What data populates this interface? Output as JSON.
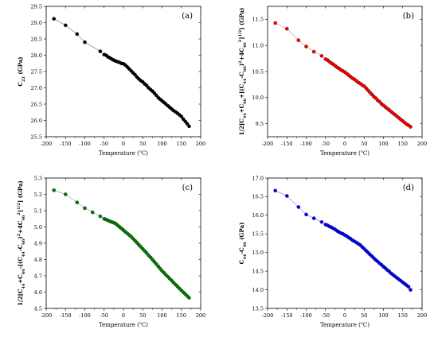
{
  "chart_data": [
    {
      "type": "scatter",
      "panel_label": "(a)",
      "color": "#000000",
      "xlabel_parts": [
        "Temperature (",
        "o",
        "C)"
      ],
      "ylabel_parts": [
        [
          "C",
          "n"
        ],
        [
          "22",
          "sub"
        ],
        [
          " (GPa)",
          "n"
        ]
      ],
      "xlim": [
        -200,
        200
      ],
      "ylim": [
        25.5,
        29.5
      ],
      "xticks": [
        -200,
        -150,
        -100,
        -50,
        0,
        50,
        100,
        150,
        200
      ],
      "yticks": [
        25.5,
        26.0,
        26.5,
        27.0,
        27.5,
        28.0,
        28.5,
        29.0,
        29.5
      ],
      "yticks_text": [
        "25.5",
        "26.0",
        "26.5",
        "27.0",
        "27.5",
        "28.0",
        "28.5",
        "29.0",
        "29.5"
      ],
      "anchors": [
        [
          -180,
          29.12
        ],
        [
          -150,
          28.92
        ],
        [
          -120,
          28.65
        ],
        [
          -100,
          28.4
        ],
        [
          -60,
          28.12
        ],
        [
          -50,
          28.02
        ],
        [
          -30,
          27.88
        ],
        [
          -10,
          27.78
        ],
        [
          0,
          27.74
        ],
        [
          10,
          27.64
        ],
        [
          20,
          27.52
        ],
        [
          30,
          27.4
        ],
        [
          50,
          27.18
        ],
        [
          75,
          26.9
        ],
        [
          100,
          26.6
        ],
        [
          125,
          26.35
        ],
        [
          150,
          26.12
        ],
        [
          170,
          25.82
        ]
      ],
      "x": [
        -180,
        -150,
        -120,
        -100,
        -60,
        -50,
        -45,
        -40,
        -35,
        -30,
        -25,
        -20,
        -15,
        -10,
        -5,
        0,
        5,
        10,
        15,
        20,
        25,
        30,
        35,
        40,
        45,
        50,
        55,
        60,
        65,
        70,
        75,
        80,
        85,
        90,
        95,
        100,
        105,
        110,
        115,
        120,
        125,
        130,
        135,
        140,
        145,
        150,
        155,
        160,
        165,
        170
      ],
      "y": [
        29.12,
        28.92,
        28.65,
        28.4,
        28.12,
        28.02,
        28.0,
        27.95,
        27.92,
        27.88,
        27.85,
        27.82,
        27.8,
        27.78,
        27.75,
        27.74,
        27.7,
        27.64,
        27.58,
        27.52,
        27.46,
        27.4,
        27.33,
        27.27,
        27.22,
        27.18,
        27.12,
        27.07,
        27.0,
        26.95,
        26.9,
        26.84,
        26.77,
        26.7,
        26.65,
        26.6,
        26.55,
        26.5,
        26.45,
        26.4,
        26.35,
        26.3,
        26.26,
        26.22,
        26.17,
        26.12,
        26.04,
        25.97,
        25.9,
        25.82
      ]
    },
    {
      "type": "scatter",
      "panel_label": "(b)",
      "color": "#ff0000",
      "xlabel_parts": [
        "Temperature (",
        "o",
        "C)"
      ],
      "ylabel_parts": [
        [
          "1/2[C",
          "n"
        ],
        [
          "44",
          "sub"
        ],
        [
          "+C",
          "n"
        ],
        [
          "66",
          "sub"
        ],
        [
          "+[(C",
          "n"
        ],
        [
          "44",
          "sub"
        ],
        [
          "-C",
          "n"
        ],
        [
          "66",
          "sub"
        ],
        [
          ")",
          "n"
        ],
        [
          "2",
          "sup"
        ],
        [
          "+4C",
          "n"
        ],
        [
          "46",
          "sub"
        ],
        [
          "2",
          "sup"
        ],
        [
          "]",
          "n"
        ],
        [
          "1/2",
          "sup"
        ],
        [
          "] (GPa)",
          "n"
        ]
      ],
      "xlim": [
        -200,
        200
      ],
      "ylim": [
        9.25,
        11.75
      ],
      "xticks": [
        -200,
        -150,
        -100,
        -50,
        0,
        50,
        100,
        150,
        200
      ],
      "yticks": [
        9.5,
        10.0,
        10.5,
        11.0,
        11.5
      ],
      "yticks_text": [
        "9.5",
        "10.0",
        "10.5",
        "11.0",
        "11.5"
      ],
      "anchors": [
        [
          -180,
          11.43
        ],
        [
          -150,
          11.32
        ],
        [
          -120,
          11.1
        ],
        [
          -100,
          10.98
        ],
        [
          -60,
          10.8
        ],
        [
          -30,
          10.64
        ],
        [
          0,
          10.49
        ],
        [
          30,
          10.32
        ],
        [
          50,
          10.22
        ],
        [
          75,
          10.02
        ],
        [
          100,
          9.85
        ],
        [
          125,
          9.7
        ],
        [
          150,
          9.55
        ],
        [
          170,
          9.44
        ]
      ],
      "x": [
        -180,
        -150,
        -120,
        -100,
        -80,
        -60,
        -50,
        -45,
        -40,
        -35,
        -30,
        -25,
        -20,
        -15,
        -10,
        -5,
        0,
        5,
        10,
        15,
        20,
        25,
        30,
        35,
        40,
        45,
        50,
        55,
        60,
        65,
        70,
        75,
        80,
        85,
        90,
        95,
        100,
        105,
        110,
        115,
        120,
        125,
        130,
        135,
        140,
        145,
        150,
        155,
        160,
        165,
        170
      ],
      "y": [
        11.43,
        11.32,
        11.1,
        10.98,
        10.88,
        10.8,
        10.74,
        10.72,
        10.69,
        10.66,
        10.64,
        10.61,
        10.58,
        10.56,
        10.53,
        10.51,
        10.49,
        10.46,
        10.43,
        10.4,
        10.37,
        10.35,
        10.32,
        10.29,
        10.27,
        10.24,
        10.22,
        10.18,
        10.14,
        10.1,
        10.06,
        10.02,
        9.99,
        9.95,
        9.92,
        9.88,
        9.85,
        9.82,
        9.79,
        9.76,
        9.73,
        9.7,
        9.67,
        9.64,
        9.61,
        9.58,
        9.55,
        9.52,
        9.49,
        9.47,
        9.44
      ]
    },
    {
      "type": "scatter",
      "panel_label": "(c)",
      "color": "#008000",
      "xlabel_parts": [
        "Temperature (",
        "o",
        "C)"
      ],
      "ylabel_parts": [
        [
          "1/2[C",
          "n"
        ],
        [
          "44",
          "sub"
        ],
        [
          "+C",
          "n"
        ],
        [
          "66",
          "sub"
        ],
        [
          "-[(C",
          "n"
        ],
        [
          "44",
          "sub"
        ],
        [
          "-C",
          "n"
        ],
        [
          "66",
          "sub"
        ],
        [
          ")",
          "n"
        ],
        [
          "2",
          "sup"
        ],
        [
          "+4C",
          "n"
        ],
        [
          "46",
          "sub"
        ],
        [
          "2",
          "sup"
        ],
        [
          "]",
          "n"
        ],
        [
          "1/2",
          "sup"
        ],
        [
          "] (GPa)",
          "n"
        ]
      ],
      "xlim": [
        -200,
        200
      ],
      "ylim": [
        4.5,
        5.3
      ],
      "xticks": [
        -200,
        -150,
        -100,
        -50,
        0,
        50,
        100,
        150,
        200
      ],
      "yticks": [
        4.5,
        4.6,
        4.7,
        4.8,
        4.9,
        5.0,
        5.1,
        5.2,
        5.3
      ],
      "yticks_text": [
        "4.5",
        "4.6",
        "4.7",
        "4.8",
        "4.9",
        "5.0",
        "5.1",
        "5.2",
        "5.3"
      ],
      "anchors": [
        [
          -180,
          5.225
        ],
        [
          -150,
          5.2
        ],
        [
          -120,
          5.15
        ],
        [
          -100,
          5.115
        ],
        [
          -80,
          5.09
        ],
        [
          -60,
          5.065
        ],
        [
          -40,
          5.04
        ],
        [
          -20,
          5.02
        ],
        [
          0,
          4.98
        ],
        [
          20,
          4.94
        ],
        [
          50,
          4.865
        ],
        [
          75,
          4.8
        ],
        [
          100,
          4.73
        ],
        [
          125,
          4.67
        ],
        [
          150,
          4.61
        ],
        [
          170,
          4.565
        ]
      ],
      "x": [
        -180,
        -150,
        -120,
        -100,
        -80,
        -60,
        -50,
        -45,
        -40,
        -35,
        -30,
        -25,
        -20,
        -15,
        -10,
        -5,
        0,
        5,
        10,
        15,
        20,
        25,
        30,
        35,
        40,
        45,
        50,
        55,
        60,
        65,
        70,
        75,
        80,
        85,
        90,
        95,
        100,
        105,
        110,
        115,
        120,
        125,
        130,
        135,
        140,
        145,
        150,
        155,
        160,
        165,
        170
      ],
      "y": [
        5.225,
        5.2,
        5.15,
        5.115,
        5.09,
        5.065,
        5.05,
        5.046,
        5.04,
        5.034,
        5.03,
        5.026,
        5.02,
        5.01,
        5.0,
        4.99,
        4.98,
        4.97,
        4.96,
        4.95,
        4.94,
        4.928,
        4.915,
        4.903,
        4.89,
        4.878,
        4.865,
        4.852,
        4.84,
        4.826,
        4.813,
        4.8,
        4.786,
        4.772,
        4.758,
        4.744,
        4.73,
        4.718,
        4.706,
        4.694,
        4.682,
        4.67,
        4.658,
        4.646,
        4.634,
        4.622,
        4.61,
        4.599,
        4.588,
        4.576,
        4.565
      ]
    },
    {
      "type": "scatter",
      "panel_label": "(d)",
      "color": "#0000ff",
      "xlabel_parts": [
        "Temperature (",
        "o",
        "C)"
      ],
      "ylabel_parts": [
        [
          "C",
          "n"
        ],
        [
          "44",
          "sub"
        ],
        [
          "-C",
          "n"
        ],
        [
          "46",
          "sub"
        ],
        [
          " (GPa)",
          "n"
        ]
      ],
      "xlim": [
        -200,
        200
      ],
      "ylim": [
        13.5,
        17.0
      ],
      "xticks": [
        -200,
        -150,
        -100,
        -50,
        0,
        50,
        100,
        150,
        200
      ],
      "yticks": [
        13.5,
        14.0,
        14.5,
        15.0,
        15.5,
        16.0,
        16.5,
        17.0
      ],
      "yticks_text": [
        "13.5",
        "14.0",
        "14.5",
        "15.0",
        "15.5",
        "16.0",
        "16.5",
        "17.0"
      ],
      "anchors": [
        [
          -180,
          16.66
        ],
        [
          -150,
          16.52
        ],
        [
          -120,
          16.22
        ],
        [
          -100,
          16.02
        ],
        [
          -60,
          15.82
        ],
        [
          -30,
          15.65
        ],
        [
          0,
          15.47
        ],
        [
          30,
          15.27
        ],
        [
          50,
          15.1
        ],
        [
          75,
          14.85
        ],
        [
          100,
          14.62
        ],
        [
          125,
          14.4
        ],
        [
          150,
          14.2
        ],
        [
          170,
          14.0
        ]
      ],
      "x": [
        -180,
        -150,
        -120,
        -100,
        -80,
        -60,
        -50,
        -45,
        -40,
        -35,
        -30,
        -25,
        -20,
        -15,
        -10,
        -5,
        0,
        5,
        10,
        15,
        20,
        25,
        30,
        35,
        40,
        45,
        50,
        55,
        60,
        65,
        70,
        75,
        80,
        85,
        90,
        95,
        100,
        105,
        110,
        115,
        120,
        125,
        130,
        135,
        140,
        145,
        150,
        155,
        160,
        165,
        170
      ],
      "y": [
        16.66,
        16.52,
        16.22,
        16.02,
        15.92,
        15.82,
        15.75,
        15.73,
        15.7,
        15.68,
        15.65,
        15.62,
        15.58,
        15.55,
        15.52,
        15.5,
        15.47,
        15.44,
        15.4,
        15.37,
        15.33,
        15.3,
        15.27,
        15.23,
        15.2,
        15.15,
        15.1,
        15.05,
        15.0,
        14.95,
        14.9,
        14.85,
        14.8,
        14.76,
        14.71,
        14.67,
        14.62,
        14.58,
        14.53,
        14.49,
        14.44,
        14.4,
        14.36,
        14.32,
        14.28,
        14.24,
        14.2,
        14.16,
        14.12,
        14.08,
        14.0
      ]
    }
  ]
}
